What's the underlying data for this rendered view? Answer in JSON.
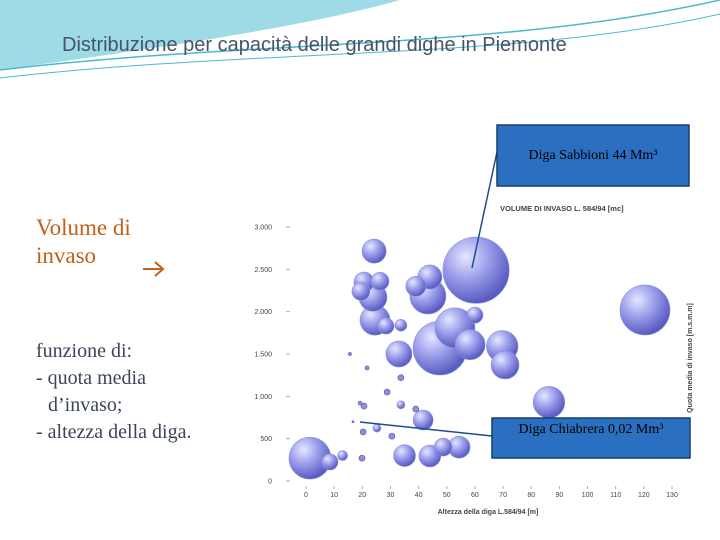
{
  "slide": {
    "title": "Distribuzione per capacità delle grandi dighe in Piemonte",
    "heading": "Volume di invaso",
    "body": [
      "funzione di:",
      "- quota media d’invaso;",
      "- altezza della diga."
    ]
  },
  "chart_data": {
    "type": "bubble",
    "title": "VOLUME DI INVASO L. 584/94 [mc]",
    "x_label": "Altezza della diga L.584/94 [m]",
    "y_label": "Quota media di invaso [m.s.m.m]",
    "color": "#8c8fe6",
    "xlim": [
      0,
      130
    ],
    "xticks": [
      0,
      10,
      20,
      30,
      40,
      50,
      60,
      70,
      80,
      90,
      100,
      110,
      120,
      130
    ],
    "ylim": [
      0,
      3000
    ],
    "yticks": [
      0,
      500,
      {
        "value": 1000,
        "label": "1.000"
      },
      {
        "value": 1500,
        "label": "1.500"
      },
      {
        "value": 2000,
        "label": "2.000"
      },
      {
        "value": 2500,
        "label": "2.500"
      },
      {
        "value": 3000,
        "label": "3.000"
      }
    ],
    "x": [
      24.2,
      20.6,
      26.3,
      19.5,
      23.8,
      44,
      39,
      43.3,
      60.4,
      120.4,
      24.5,
      28.4,
      33.7,
      60,
      52.9,
      47.6,
      58.3,
      69.7,
      70.7,
      33,
      86.3,
      1.4,
      8.5,
      13,
      35,
      44,
      48.7,
      54.4,
      41.6,
      15.6,
      21.7,
      33.7,
      28.8,
      19.2,
      20.6,
      33.7,
      39,
      16.7,
      20.3,
      25.2,
      30.5,
      19.9
    ],
    "values": [
      2715,
      2350,
      2360,
      2240,
      2170,
      2410,
      2300,
      2185,
      2490,
      2020,
      1900,
      1830,
      1840,
      1960,
      1810,
      1570,
      1610,
      1590,
      1370,
      1500,
      930,
      270,
      225,
      300,
      300,
      295,
      400,
      400,
      720,
      1500,
      1335,
      1220,
      1050,
      920,
      885,
      900,
      850,
      700,
      580,
      625,
      530,
      270
    ],
    "sizes": [
      5.8,
      4,
      3.2,
      3.2,
      7.8,
      5.8,
      4,
      13,
      44,
      25,
      9,
      2.6,
      1.4,
      2.6,
      16,
      29,
      9,
      10,
      7.8,
      6.8,
      10,
      17.6,
      2.6,
      1,
      4.8,
      4.8,
      3.2,
      4.8,
      4,
      0.1,
      0.16,
      0.36,
      0.36,
      0.16,
      0.36,
      0.64,
      0.36,
      0.02,
      0.36,
      0.64,
      0.36,
      0.36
    ],
    "annotations": [
      "Diga Sabbioni 44 Mm³",
      "Diga Chiabrera 0,02 Mm³"
    ]
  }
}
